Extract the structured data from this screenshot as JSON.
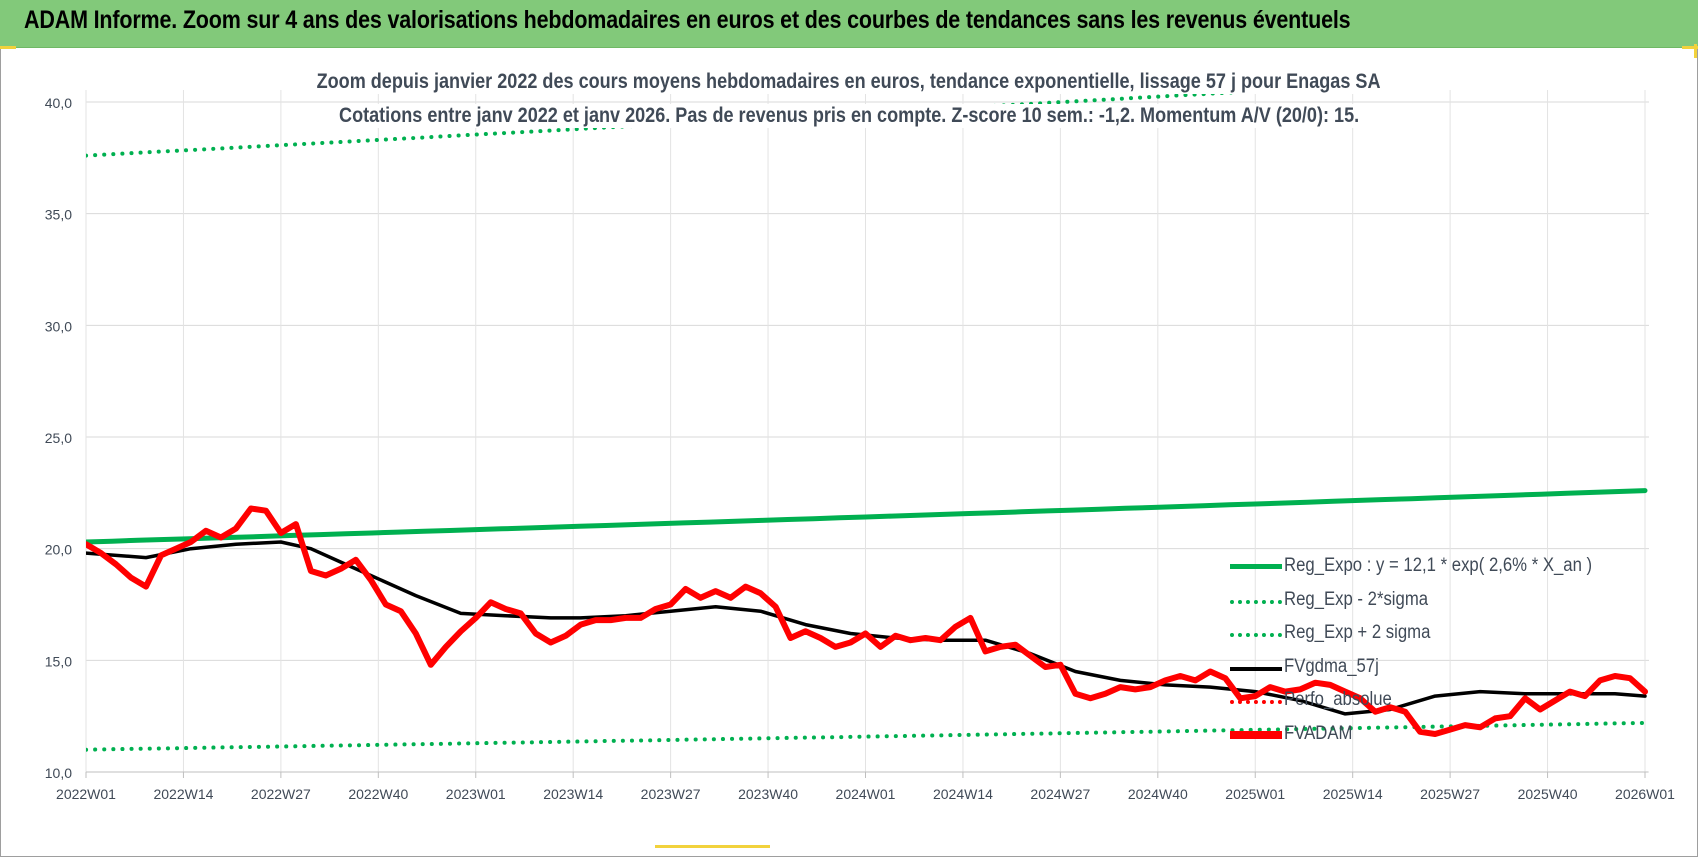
{
  "header": {
    "title": "ADAM Informe. Zoom sur 4 ans des valorisations hebdomadaires en euros et des courbes de tendances sans les revenus éventuels"
  },
  "chart_data": {
    "type": "line",
    "title_lines": [
      "Zoom depuis janvier 2022 des cours moyens hebdomadaires en euros, tendance exponentielle, lissage 57 j pour Enagas SA",
      "Cotations entre janv 2022 et janv 2026. Pas de revenus pris en compte. Z-score 10 sem.: -1,2. Momentum A/V (20/0): 15."
    ],
    "ylim": [
      10,
      40
    ],
    "y_ticks": [
      "10,0",
      "15,0",
      "20,0",
      "25,0",
      "30,0",
      "35,0",
      "40,0"
    ],
    "x_ticks": [
      "2022W01",
      "2022W14",
      "2022W27",
      "2022W40",
      "2023W01",
      "2023W14",
      "2023W27",
      "2023W40",
      "2024W01",
      "2024W14",
      "2024W27",
      "2024W40",
      "2025W01",
      "2025W14",
      "2025W27",
      "2025W40",
      "2026W01"
    ],
    "x_range_weeks": [
      0,
      208
    ],
    "grid": true,
    "legend_position": "right",
    "series": [
      {
        "name": "Reg_Expo : y = 12,1 * exp( 2,6% *  X_an )",
        "color": "#00b050",
        "style": "solid",
        "x": [
          0,
          208
        ],
        "values": [
          20.3,
          22.6
        ]
      },
      {
        "name": "Reg_Exp - 2*sigma",
        "color": "#00b050",
        "style": "dotted",
        "x": [
          0,
          208
        ],
        "values": [
          11.0,
          12.2
        ]
      },
      {
        "name": "Reg_Exp + 2 sigma",
        "color": "#00b050",
        "style": "dotted",
        "x": [
          0,
          208
        ],
        "values": [
          37.6,
          41.5
        ]
      },
      {
        "name": "FVgdma_57j",
        "color": "#000000",
        "style": "solid",
        "x": [
          0,
          8,
          14,
          20,
          26,
          30,
          34,
          38,
          44,
          50,
          56,
          62,
          66,
          72,
          78,
          84,
          90,
          96,
          102,
          108,
          114,
          120,
          126,
          132,
          138,
          144,
          150,
          156,
          162,
          168,
          174,
          180,
          186,
          192,
          198,
          204,
          208
        ],
        "values": [
          19.8,
          19.6,
          20.0,
          20.2,
          20.3,
          20.0,
          19.4,
          18.8,
          17.9,
          17.1,
          17.0,
          16.9,
          16.9,
          17.0,
          17.2,
          17.4,
          17.2,
          16.6,
          16.2,
          16.0,
          15.9,
          15.9,
          15.3,
          14.5,
          14.1,
          13.9,
          13.8,
          13.6,
          13.2,
          12.6,
          12.8,
          13.4,
          13.6,
          13.5,
          13.5,
          13.5,
          13.4
        ]
      },
      {
        "name": "Perfo_absolue",
        "color": "#ff0000",
        "style": "dotted",
        "x": [],
        "values": []
      },
      {
        "name": "FVADAM",
        "color": "#ff0000",
        "style": "thick",
        "x": [
          0,
          2,
          4,
          6,
          8,
          10,
          12,
          14,
          16,
          18,
          20,
          22,
          24,
          26,
          28,
          30,
          32,
          34,
          36,
          38,
          40,
          42,
          44,
          46,
          48,
          50,
          52,
          54,
          56,
          58,
          60,
          62,
          64,
          66,
          68,
          70,
          72,
          74,
          76,
          78,
          80,
          82,
          84,
          86,
          88,
          90,
          92,
          94,
          96,
          98,
          100,
          102,
          104,
          106,
          108,
          110,
          112,
          114,
          116,
          118,
          120,
          122,
          124,
          126,
          128,
          130,
          132,
          134,
          136,
          138,
          140,
          142,
          144,
          146,
          148,
          150,
          152,
          154,
          156,
          158,
          160,
          162,
          164,
          166,
          168,
          170,
          172,
          174,
          176,
          178,
          180,
          182,
          184,
          186,
          188,
          190,
          192,
          194,
          196,
          198,
          200,
          202,
          204,
          206,
          208
        ],
        "values": [
          20.2,
          19.8,
          19.3,
          18.7,
          18.3,
          19.7,
          20.0,
          20.3,
          20.8,
          20.5,
          20.9,
          21.8,
          21.7,
          20.7,
          21.1,
          19.0,
          18.8,
          19.1,
          19.5,
          18.6,
          17.5,
          17.2,
          16.2,
          14.8,
          15.6,
          16.3,
          16.9,
          17.6,
          17.3,
          17.1,
          16.2,
          15.8,
          16.1,
          16.6,
          16.8,
          16.8,
          16.9,
          16.9,
          17.3,
          17.5,
          18.2,
          17.8,
          18.1,
          17.8,
          18.3,
          18.0,
          17.4,
          16.0,
          16.3,
          16.0,
          15.6,
          15.8,
          16.2,
          15.6,
          16.1,
          15.9,
          16.0,
          15.9,
          16.5,
          16.9,
          15.4,
          15.6,
          15.7,
          15.2,
          14.7,
          14.8,
          13.5,
          13.3,
          13.5,
          13.8,
          13.7,
          13.8,
          14.1,
          14.3,
          14.1,
          14.5,
          14.2,
          13.3,
          13.4,
          13.8,
          13.6,
          13.7,
          14.0,
          13.9,
          13.6,
          13.3,
          12.7,
          12.9,
          12.7,
          11.8,
          11.7,
          11.9,
          12.1,
          12.0,
          12.4,
          12.5,
          13.3,
          12.8,
          13.2,
          13.6,
          13.4,
          14.1,
          14.3,
          14.2,
          13.6
        ]
      }
    ]
  }
}
